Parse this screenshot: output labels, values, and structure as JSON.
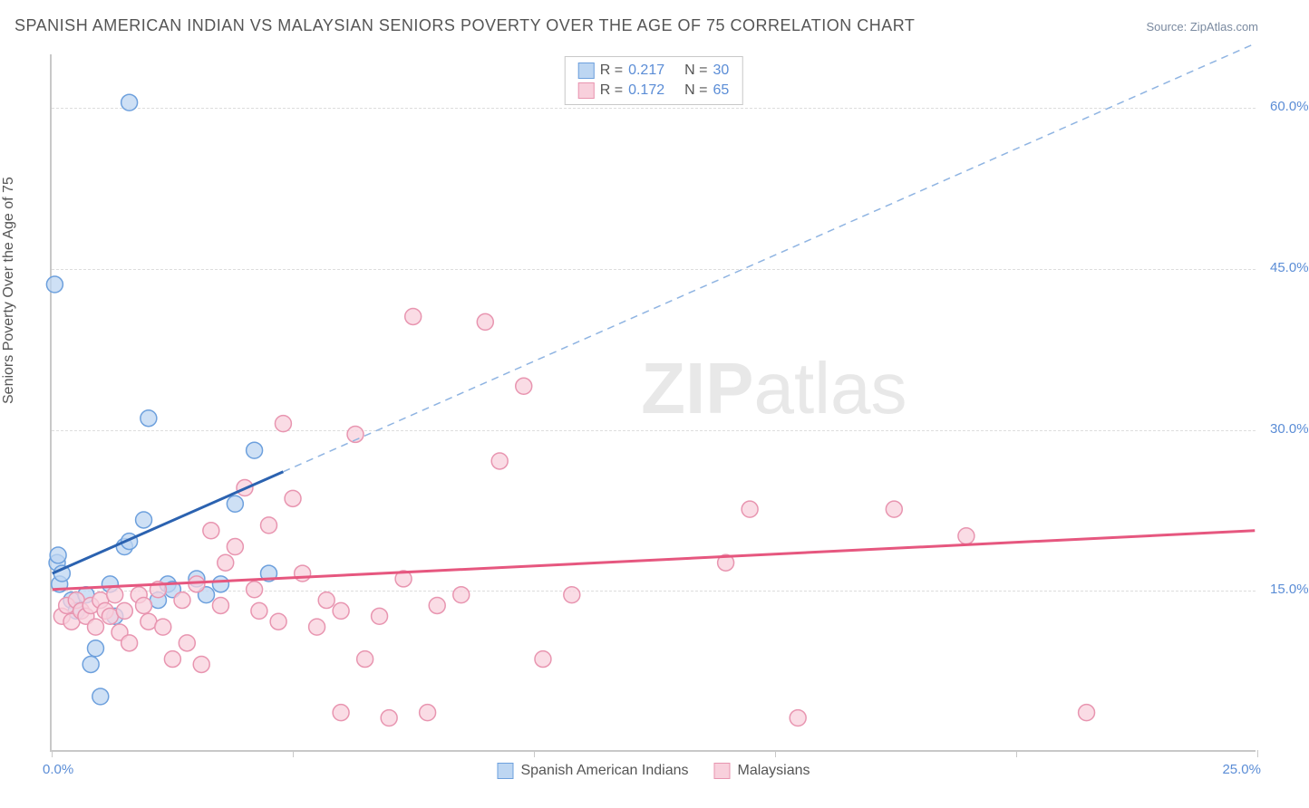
{
  "title": "SPANISH AMERICAN INDIAN VS MALAYSIAN SENIORS POVERTY OVER THE AGE OF 75 CORRELATION CHART",
  "source": "Source: ZipAtlas.com",
  "watermark_a": "ZIP",
  "watermark_b": "atlas",
  "y_axis_label": "Seniors Poverty Over the Age of 75",
  "chart": {
    "type": "scatter",
    "background_color": "#ffffff",
    "grid_color": "#dddddd",
    "axis_color": "#c8c8c8",
    "axis_label_color": "#5b8dd6",
    "text_color": "#555555",
    "marker_radius": 9,
    "marker_stroke_width": 1.5,
    "xlim": [
      0,
      25
    ],
    "ylim": [
      0,
      65
    ],
    "x_ticks": [
      0,
      5,
      10,
      15,
      20,
      25
    ],
    "x_tick_labels": {
      "min": "0.0%",
      "max": "25.0%"
    },
    "y_grid": [
      15,
      30,
      45,
      60
    ],
    "y_tick_labels": [
      "15.0%",
      "30.0%",
      "45.0%",
      "60.0%"
    ],
    "series": [
      {
        "key": "spanish_american_indians",
        "label": "Spanish American Indians",
        "fill_color": "#bdd6f2",
        "stroke_color": "#6da0dd",
        "line_color": "#2b62b0",
        "line_dash_color": "#8fb4e2",
        "correlation": {
          "R": "0.217",
          "N": "30"
        },
        "trend_solid": {
          "x1": 0,
          "y1": 16.5,
          "x2": 4.8,
          "y2": 26
        },
        "trend_dash": {
          "x1": 4.8,
          "y1": 26,
          "x2": 25,
          "y2": 66
        },
        "points": [
          [
            0.05,
            43.5
          ],
          [
            1.6,
            60.5
          ],
          [
            0.1,
            17.5
          ],
          [
            0.12,
            18.2
          ],
          [
            0.15,
            15.5
          ],
          [
            0.2,
            16.5
          ],
          [
            0.4,
            14.0
          ],
          [
            0.5,
            13.0
          ],
          [
            0.7,
            14.5
          ],
          [
            0.8,
            8.0
          ],
          [
            0.9,
            9.5
          ],
          [
            1.0,
            5.0
          ],
          [
            1.2,
            15.5
          ],
          [
            1.3,
            12.5
          ],
          [
            1.5,
            19.0
          ],
          [
            1.6,
            19.5
          ],
          [
            1.9,
            21.5
          ],
          [
            2.0,
            31.0
          ],
          [
            2.2,
            14.0
          ],
          [
            2.4,
            15.5
          ],
          [
            2.5,
            15.0
          ],
          [
            3.0,
            16.0
          ],
          [
            3.2,
            14.5
          ],
          [
            3.5,
            15.5
          ],
          [
            3.8,
            23.0
          ],
          [
            4.2,
            28.0
          ],
          [
            4.5,
            16.5
          ]
        ]
      },
      {
        "key": "malaysians",
        "label": "Malaysians",
        "fill_color": "#f8d0dc",
        "stroke_color": "#e895b0",
        "line_color": "#e6577f",
        "correlation": {
          "R": "0.172",
          "N": "65"
        },
        "trend_solid": {
          "x1": 0,
          "y1": 15.0,
          "x2": 25,
          "y2": 20.5
        },
        "points": [
          [
            0.2,
            12.5
          ],
          [
            0.3,
            13.5
          ],
          [
            0.4,
            12.0
          ],
          [
            0.5,
            14.0
          ],
          [
            0.6,
            13.0
          ],
          [
            0.7,
            12.5
          ],
          [
            0.8,
            13.5
          ],
          [
            0.9,
            11.5
          ],
          [
            1.0,
            14.0
          ],
          [
            1.1,
            13.0
          ],
          [
            1.2,
            12.5
          ],
          [
            1.3,
            14.5
          ],
          [
            1.4,
            11.0
          ],
          [
            1.5,
            13.0
          ],
          [
            1.6,
            10.0
          ],
          [
            1.8,
            14.5
          ],
          [
            1.9,
            13.5
          ],
          [
            2.0,
            12.0
          ],
          [
            2.2,
            15.0
          ],
          [
            2.3,
            11.5
          ],
          [
            2.5,
            8.5
          ],
          [
            2.7,
            14.0
          ],
          [
            2.8,
            10.0
          ],
          [
            3.0,
            15.5
          ],
          [
            3.1,
            8.0
          ],
          [
            3.3,
            20.5
          ],
          [
            3.5,
            13.5
          ],
          [
            3.6,
            17.5
          ],
          [
            3.8,
            19.0
          ],
          [
            4.0,
            24.5
          ],
          [
            4.2,
            15.0
          ],
          [
            4.3,
            13.0
          ],
          [
            4.5,
            21.0
          ],
          [
            4.7,
            12.0
          ],
          [
            4.8,
            30.5
          ],
          [
            5.0,
            23.5
          ],
          [
            5.2,
            16.5
          ],
          [
            5.5,
            11.5
          ],
          [
            5.7,
            14.0
          ],
          [
            6.0,
            13.0
          ],
          [
            6.3,
            29.5
          ],
          [
            6.5,
            8.5
          ],
          [
            6.8,
            12.5
          ],
          [
            7.0,
            3.0
          ],
          [
            7.3,
            16.0
          ],
          [
            7.5,
            40.5
          ],
          [
            7.8,
            3.5
          ],
          [
            8.0,
            13.5
          ],
          [
            8.5,
            14.5
          ],
          [
            9.0,
            40.0
          ],
          [
            9.3,
            27.0
          ],
          [
            9.8,
            34.0
          ],
          [
            10.2,
            8.5
          ],
          [
            10.8,
            14.5
          ],
          [
            14.0,
            17.5
          ],
          [
            14.5,
            22.5
          ],
          [
            15.5,
            3.0
          ],
          [
            17.5,
            22.5
          ],
          [
            19.0,
            20.0
          ],
          [
            21.5,
            3.5
          ],
          [
            6.0,
            3.5
          ]
        ]
      }
    ]
  }
}
